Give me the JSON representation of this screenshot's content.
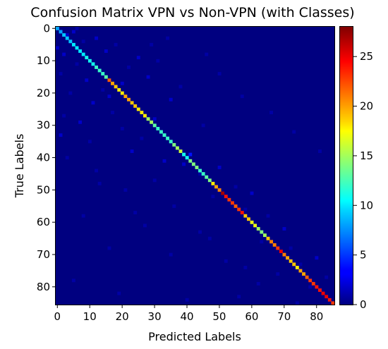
{
  "chart_data": {
    "type": "heatmap",
    "title": "Confusion Matrix VPN vs Non-VPN (with Classes)",
    "xlabel": "Predicted Labels",
    "ylabel": "True Labels",
    "n_classes": 86,
    "x_ticks": [
      0,
      10,
      20,
      30,
      40,
      50,
      60,
      70,
      80
    ],
    "y_ticks": [
      0,
      10,
      20,
      30,
      40,
      50,
      60,
      70,
      80
    ],
    "colorbar": {
      "colormap": "jet",
      "range": [
        0,
        28
      ],
      "ticks": [
        0,
        5,
        10,
        15,
        20,
        25
      ]
    },
    "diagonal": [
      8,
      8,
      9,
      9,
      9,
      10,
      10,
      10,
      10,
      11,
      11,
      11,
      12,
      12,
      12,
      13,
      22,
      20,
      19,
      18,
      18,
      20,
      20,
      19,
      19,
      18,
      18,
      18,
      15,
      15,
      13,
      12,
      12,
      12,
      12,
      12,
      14,
      15,
      16,
      11,
      11,
      14,
      14,
      14,
      12,
      12,
      13,
      14,
      18,
      20,
      21,
      27,
      24,
      23,
      23,
      22,
      23,
      24,
      19,
      19,
      17,
      17,
      15,
      14,
      15,
      19,
      21,
      21,
      23,
      25,
      21,
      20,
      19,
      19,
      18,
      20,
      20,
      22,
      23,
      23,
      24,
      24,
      25,
      25,
      24,
      23
    ],
    "off_diagonal_cells": [
      [
        3,
        2,
        2
      ],
      [
        5,
        1,
        2
      ],
      [
        8,
        4,
        1
      ],
      [
        12,
        3,
        2
      ],
      [
        2,
        8,
        2
      ],
      [
        6,
        11,
        1
      ],
      [
        15,
        7,
        2
      ],
      [
        18,
        5,
        1
      ],
      [
        1,
        14,
        1
      ],
      [
        9,
        16,
        2
      ],
      [
        22,
        12,
        1
      ],
      [
        25,
        9,
        2
      ],
      [
        4,
        20,
        1
      ],
      [
        11,
        23,
        2
      ],
      [
        14,
        19,
        1
      ],
      [
        28,
        15,
        2
      ],
      [
        31,
        10,
        1
      ],
      [
        2,
        27,
        1
      ],
      [
        7,
        29,
        2
      ],
      [
        17,
        26,
        1
      ],
      [
        20,
        31,
        1
      ],
      [
        35,
        22,
        2
      ],
      [
        38,
        18,
        1
      ],
      [
        1,
        33,
        2
      ],
      [
        10,
        35,
        1
      ],
      [
        23,
        38,
        2
      ],
      [
        26,
        34,
        1
      ],
      [
        45,
        30,
        1
      ],
      [
        33,
        41,
        2
      ],
      [
        3,
        40,
        1
      ],
      [
        41,
        39,
        4
      ],
      [
        39,
        42,
        2
      ],
      [
        44,
        45,
        1
      ],
      [
        12,
        44,
        1
      ],
      [
        30,
        47,
        1
      ],
      [
        50,
        43,
        2
      ],
      [
        48,
        52,
        1
      ],
      [
        55,
        49,
        1
      ],
      [
        21,
        50,
        1
      ],
      [
        36,
        55,
        1
      ],
      [
        60,
        51,
        2
      ],
      [
        58,
        56,
        1
      ],
      [
        65,
        58,
        1
      ],
      [
        8,
        58,
        1
      ],
      [
        27,
        61,
        1
      ],
      [
        44,
        63,
        1
      ],
      [
        63,
        66,
        1
      ],
      [
        70,
        62,
        2
      ],
      [
        72,
        68,
        1
      ],
      [
        16,
        68,
        1
      ],
      [
        35,
        70,
        1
      ],
      [
        52,
        72,
        1
      ],
      [
        75,
        73,
        1
      ],
      [
        68,
        76,
        1
      ],
      [
        80,
        71,
        2
      ],
      [
        78,
        80,
        1
      ],
      [
        5,
        78,
        1
      ],
      [
        19,
        82,
        1
      ],
      [
        40,
        84,
        1
      ],
      [
        56,
        83,
        1
      ],
      [
        62,
        79,
        1
      ],
      [
        83,
        77,
        1
      ],
      [
        74,
        85,
        1
      ],
      [
        29,
        5,
        1
      ],
      [
        34,
        3,
        1
      ],
      [
        46,
        8,
        1
      ],
      [
        50,
        14,
        1
      ],
      [
        57,
        21,
        1
      ],
      [
        66,
        26,
        1
      ],
      [
        73,
        32,
        1
      ],
      [
        81,
        38,
        1
      ],
      [
        13,
        48,
        1
      ],
      [
        24,
        57,
        1
      ],
      [
        47,
        65,
        1
      ],
      [
        58,
        74,
        1
      ],
      [
        0,
        6,
        2
      ],
      [
        6,
        0,
        1
      ],
      [
        16,
        21,
        2
      ],
      [
        20,
        17,
        2
      ],
      [
        30,
        28,
        2
      ]
    ]
  }
}
